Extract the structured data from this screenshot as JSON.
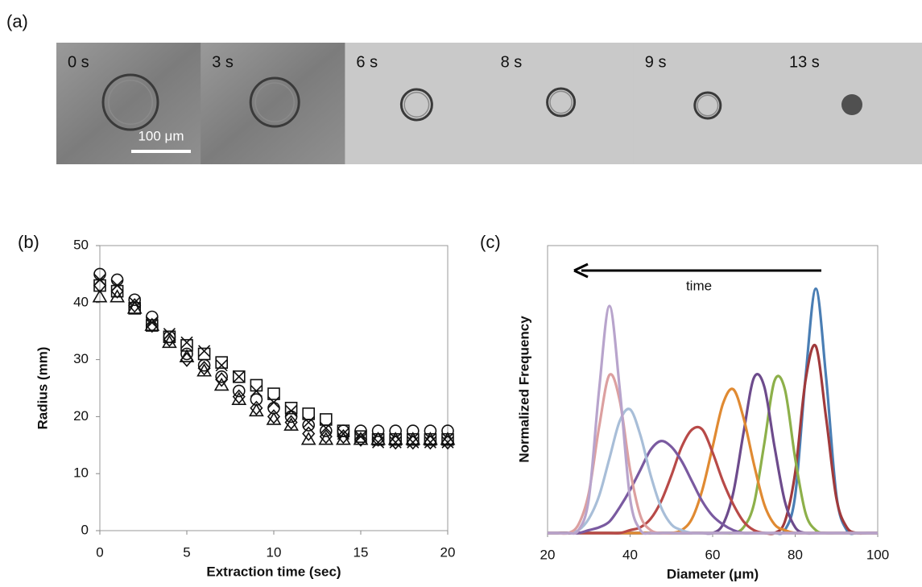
{
  "panel_a": {
    "label": "(a)",
    "frames": [
      "0 s",
      "3 s",
      "6 s",
      "8 s",
      "9 s",
      "13 s"
    ],
    "scale_bar": "100 μm"
  },
  "chart_data": [
    {
      "type": "scatter",
      "panel_label": "(b)",
      "x_label": "Extraction time (sec)",
      "y_label": "Radius (mm)",
      "xlim": [
        0,
        20
      ],
      "ylim": [
        0,
        50
      ],
      "xticks": [
        0,
        5,
        10,
        15,
        20
      ],
      "yticks": [
        0,
        10,
        20,
        30,
        40,
        50
      ],
      "x": [
        0,
        1,
        2,
        3,
        4,
        5,
        6,
        7,
        8,
        9,
        10,
        11,
        12,
        13,
        14,
        15,
        16,
        17,
        18,
        19,
        20
      ],
      "series": [
        {
          "marker": "circle",
          "color": "#111111",
          "values": [
            45,
            44,
            40.5,
            37.5,
            34,
            31,
            29,
            27,
            24.5,
            23,
            21.5,
            20,
            18.5,
            17.5,
            17.5,
            17.5,
            17.5,
            17.5,
            17.5,
            17.5,
            17.5
          ]
        },
        {
          "marker": "triangle",
          "color": "#111111",
          "values": [
            41,
            41,
            39,
            36,
            33,
            30.5,
            28,
            25.5,
            23,
            21,
            19.5,
            18.5,
            16,
            16,
            16,
            16,
            16,
            16,
            16,
            16,
            16
          ]
        },
        {
          "marker": "diamond",
          "color": "#111111",
          "values": [
            43,
            42,
            39.5,
            36,
            33.5,
            30,
            28.5,
            26.5,
            23.5,
            21.5,
            20,
            19,
            17,
            16.5,
            16.5,
            16,
            16,
            15.5,
            15.5,
            15.5,
            15.5
          ]
        },
        {
          "marker": "square",
          "color": "#111111",
          "values": [
            43,
            42,
            39,
            36,
            34,
            32.5,
            31,
            29.5,
            27,
            25.5,
            24,
            21.5,
            20.5,
            19.5,
            17.5,
            16.5,
            16,
            16,
            16,
            16,
            16
          ]
        },
        {
          "marker": "cross",
          "color": "#111111",
          "values": [
            44,
            43,
            40,
            36.5,
            34.5,
            33,
            31.5,
            29,
            27,
            24.5,
            22.5,
            21,
            19,
            18,
            17,
            16.5,
            15.5,
            15.5,
            15.5,
            15.5,
            15.5
          ]
        }
      ]
    },
    {
      "type": "line",
      "panel_label": "(c)",
      "x_label": "Diameter (μm)",
      "y_label": "Normalized Frequency",
      "annotation": "time",
      "xlim": [
        20,
        100
      ],
      "ylim": [
        0,
        1
      ],
      "xticks": [
        20,
        40,
        60,
        80,
        100
      ],
      "x": [
        20,
        22.5,
        25,
        27.5,
        30,
        32.5,
        35,
        37.5,
        40,
        42.5,
        45,
        47.5,
        50,
        52.5,
        55,
        57.5,
        60,
        62.5,
        65,
        67.5,
        70,
        72.5,
        75,
        77.5,
        80,
        82.5,
        85,
        87.5,
        90,
        92.5,
        95,
        97.5,
        100
      ],
      "series": [
        {
          "color": "#4a7eb4",
          "values": [
            0,
            0,
            0,
            0,
            0,
            0,
            0,
            0,
            0,
            0,
            0,
            0,
            0,
            0,
            0,
            0,
            0,
            0,
            0,
            0,
            0,
            0,
            0,
            0.01,
            0.13,
            0.54,
            0.85,
            0.54,
            0.13,
            0.01,
            0,
            0,
            0
          ]
        },
        {
          "color": "#a03a3c",
          "values": [
            0,
            0,
            0,
            0,
            0,
            0,
            0,
            0,
            0,
            0,
            0,
            0,
            0,
            0,
            0,
            0,
            0,
            0,
            0,
            0,
            0,
            0,
            0,
            0.04,
            0.21,
            0.53,
            0.65,
            0.4,
            0.12,
            0.02,
            0,
            0,
            0
          ]
        },
        {
          "color": "#8db04a",
          "values": [
            0,
            0,
            0,
            0,
            0,
            0,
            0,
            0,
            0,
            0,
            0,
            0,
            0,
            0,
            0,
            0,
            0,
            0,
            0,
            0.02,
            0.1,
            0.31,
            0.53,
            0.5,
            0.26,
            0.07,
            0.01,
            0,
            0,
            0,
            0,
            0,
            0
          ]
        },
        {
          "color": "#6d4b8c",
          "values": [
            0,
            0,
            0,
            0,
            0,
            0,
            0,
            0,
            0,
            0,
            0,
            0,
            0,
            0,
            0,
            0,
            0,
            0.03,
            0.14,
            0.35,
            0.54,
            0.51,
            0.3,
            0.11,
            0.02,
            0,
            0,
            0,
            0,
            0,
            0,
            0,
            0
          ]
        },
        {
          "color": "#e08a32",
          "values": [
            0,
            0,
            0,
            0,
            0,
            0,
            0,
            0,
            0,
            0,
            0,
            0,
            0,
            0.01,
            0.05,
            0.15,
            0.3,
            0.45,
            0.5,
            0.4,
            0.24,
            0.1,
            0.03,
            0.01,
            0,
            0,
            0,
            0,
            0,
            0,
            0,
            0,
            0
          ]
        },
        {
          "color": "#b84a48",
          "values": [
            0,
            0,
            0,
            0,
            0,
            0,
            0,
            0,
            0.01,
            0.02,
            0.05,
            0.11,
            0.2,
            0.3,
            0.36,
            0.36,
            0.28,
            0.18,
            0.1,
            0.04,
            0.01,
            0,
            0,
            0,
            0,
            0,
            0,
            0,
            0,
            0,
            0,
            0,
            0
          ]
        },
        {
          "color": "#7a5aa0",
          "values": [
            0,
            0,
            0,
            0,
            0.01,
            0.02,
            0.04,
            0.09,
            0.15,
            0.22,
            0.29,
            0.32,
            0.3,
            0.25,
            0.18,
            0.11,
            0.06,
            0.03,
            0.01,
            0,
            0,
            0,
            0,
            0,
            0,
            0,
            0,
            0,
            0,
            0,
            0,
            0,
            0
          ]
        },
        {
          "color": "#a8bed8",
          "values": [
            0,
            0,
            0,
            0.01,
            0.05,
            0.13,
            0.26,
            0.39,
            0.43,
            0.34,
            0.2,
            0.09,
            0.03,
            0.01,
            0,
            0,
            0,
            0,
            0,
            0,
            0,
            0,
            0,
            0,
            0,
            0,
            0,
            0,
            0,
            0,
            0,
            0,
            0
          ]
        },
        {
          "color": "#dca0a0",
          "values": [
            0,
            0,
            0,
            0.03,
            0.14,
            0.37,
            0.55,
            0.46,
            0.22,
            0.06,
            0.01,
            0,
            0,
            0,
            0,
            0,
            0,
            0,
            0,
            0,
            0,
            0,
            0,
            0,
            0,
            0,
            0,
            0,
            0,
            0,
            0,
            0,
            0
          ]
        },
        {
          "color": "#b8a4cc",
          "values": [
            0,
            0,
            0,
            0.01,
            0.12,
            0.5,
            0.79,
            0.5,
            0.12,
            0.01,
            0,
            0,
            0,
            0,
            0,
            0,
            0,
            0,
            0,
            0,
            0,
            0,
            0,
            0,
            0,
            0,
            0,
            0,
            0,
            0,
            0,
            0,
            0
          ]
        }
      ]
    }
  ]
}
